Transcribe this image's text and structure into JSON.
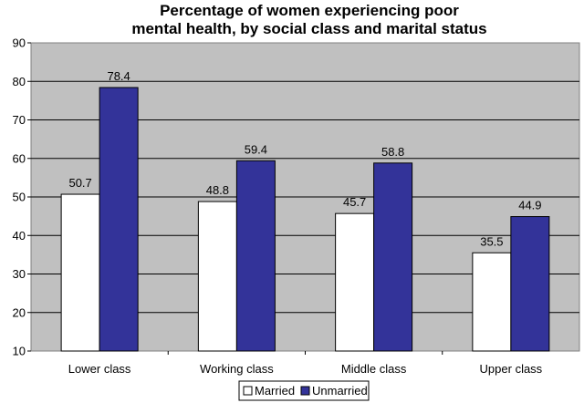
{
  "chart_data": {
    "type": "bar",
    "title_lines": [
      "Percentage of women experiencing poor",
      "mental health, by social class and marital status"
    ],
    "xlabel": "",
    "ylabel": "",
    "categories": [
      "Lower class",
      "Working class",
      "Middle class",
      "Upper class"
    ],
    "series": [
      {
        "name": "Married",
        "values": [
          50.7,
          48.8,
          45.7,
          35.5
        ],
        "color": "#ffffff"
      },
      {
        "name": "Unmarried",
        "values": [
          78.4,
          59.4,
          58.8,
          44.9
        ],
        "color": "#333399"
      }
    ],
    "ylim": [
      10,
      90
    ],
    "yticks": [
      10,
      20,
      30,
      40,
      50,
      60,
      70,
      80,
      90
    ],
    "grid": true,
    "legend": "bottom",
    "plot_background": "#c0c0c0"
  }
}
